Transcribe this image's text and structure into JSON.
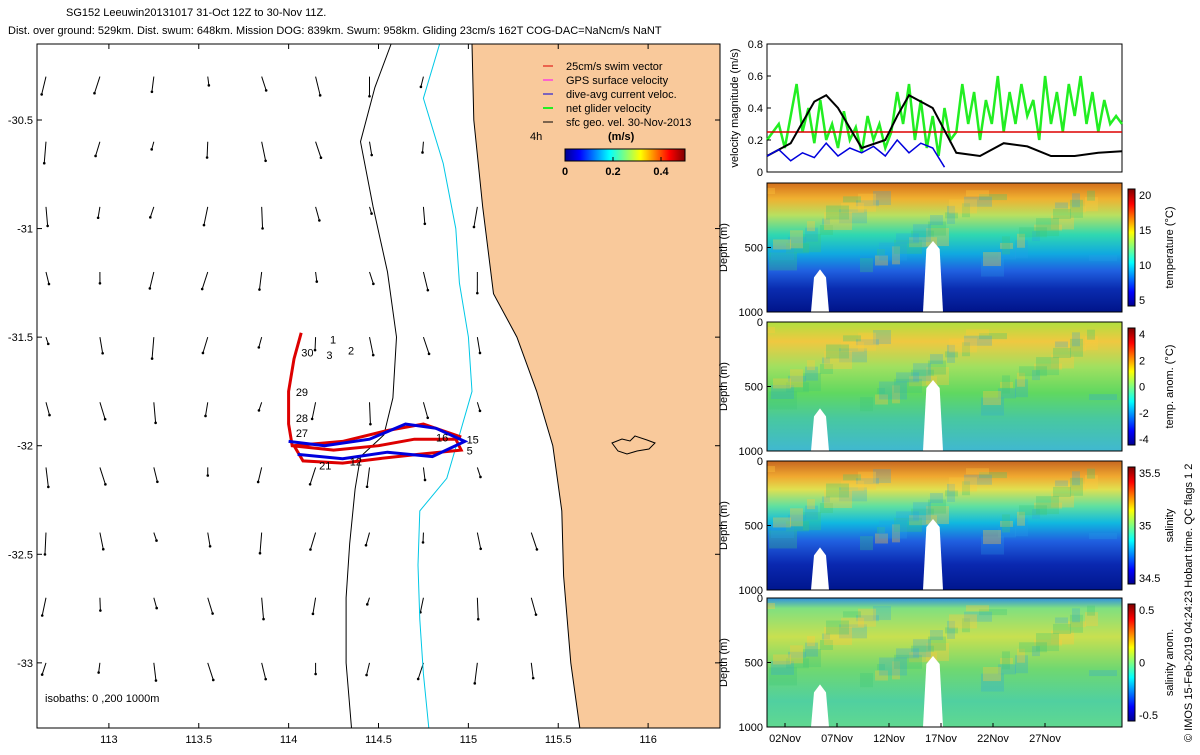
{
  "header": {
    "line1": "SG152 Leeuwin20131017 31-Oct 12Z to 30-Nov 11Z.",
    "line2": "Dist. over ground: 529km. Dist. swum: 648km. Mission DOG: 839km. Swum: 958km. Gliding 23cm/s 162T COG-DAC=NaNcm/s NaNT"
  },
  "colors": {
    "land": "#f9c99b",
    "isobath_200": "#00c8e6",
    "isobath_1000": "#000000",
    "swim": "#dd0000",
    "gps": "#ff00ff",
    "dac": "#0000dd",
    "net": "#22ee22",
    "sfc": "#000000"
  },
  "chart_data": [
    {
      "id": "map",
      "type": "scatter",
      "title": "",
      "xlabel": "",
      "ylabel": "",
      "xlim": [
        112.6,
        116.4
      ],
      "ylim": [
        -33.3,
        -30.15
      ],
      "x_ticks": [
        113,
        113.5,
        114,
        114.5,
        115,
        115.5,
        116
      ],
      "x_tick_labels": [
        "113",
        "113.5",
        "114",
        "114.5",
        "115",
        "115.5",
        "116"
      ],
      "y_ticks": [
        -30.5,
        -31,
        -31.5,
        -32,
        -32.5,
        -33
      ],
      "y_tick_labels": [
        "-30.5",
        "-31",
        "-31.5",
        "-32",
        "-32.5",
        "-33"
      ],
      "legend": {
        "position": "top-right",
        "entries": [
          "25cm/s swim vector",
          "GPS surface velocity",
          "dive-avg current veloc.",
          "net glider velocity",
          "sfc geo. vel. 30-Nov-2013"
        ]
      },
      "colorbar": {
        "label": "(m/s)",
        "tick_labels": [
          "0",
          "0.2",
          "0.4"
        ],
        "range": [
          0,
          0.5
        ]
      },
      "label_4h": "4h",
      "isobath_note": "isobaths: 0 ,200  1000m",
      "coastline": [
        [
          115.02,
          -30.15
        ],
        [
          115.03,
          -30.5
        ],
        [
          115.08,
          -30.9
        ],
        [
          115.14,
          -31.3
        ],
        [
          115.27,
          -31.5
        ],
        [
          115.38,
          -31.75
        ],
        [
          115.47,
          -32.0
        ],
        [
          115.52,
          -32.3
        ],
        [
          115.53,
          -32.6
        ],
        [
          115.57,
          -33.0
        ],
        [
          115.62,
          -33.3
        ]
      ],
      "isobath_200": [
        [
          114.84,
          -30.15
        ],
        [
          114.75,
          -30.4
        ],
        [
          114.86,
          -30.7
        ],
        [
          114.93,
          -31.0
        ],
        [
          114.95,
          -31.25
        ],
        [
          115.0,
          -31.5
        ],
        [
          115.02,
          -31.75
        ],
        [
          114.94,
          -31.98
        ],
        [
          114.88,
          -32.15
        ],
        [
          114.73,
          -32.3
        ],
        [
          114.72,
          -32.55
        ],
        [
          114.73,
          -32.8
        ],
        [
          114.75,
          -33.05
        ],
        [
          114.78,
          -33.3
        ]
      ],
      "isobath_1000": [
        [
          114.57,
          -30.15
        ],
        [
          114.48,
          -30.35
        ],
        [
          114.4,
          -30.6
        ],
        [
          114.47,
          -30.9
        ],
        [
          114.55,
          -31.2
        ],
        [
          114.6,
          -31.5
        ],
        [
          114.58,
          -31.78
        ],
        [
          114.53,
          -31.95
        ],
        [
          114.4,
          -32.05
        ],
        [
          114.37,
          -32.2
        ],
        [
          114.34,
          -32.45
        ],
        [
          114.32,
          -32.7
        ],
        [
          114.32,
          -33.0
        ],
        [
          114.35,
          -33.3
        ]
      ],
      "track": [
        [
          114.07,
          -31.48
        ],
        [
          114.03,
          -31.6
        ],
        [
          114.0,
          -31.75
        ],
        [
          114.0,
          -31.9
        ],
        [
          114.02,
          -32.0
        ],
        [
          114.25,
          -32.02
        ],
        [
          114.5,
          -32.0
        ],
        [
          114.7,
          -31.97
        ],
        [
          114.93,
          -31.97
        ],
        [
          114.96,
          -32.02
        ],
        [
          114.72,
          -32.04
        ],
        [
          114.5,
          -32.06
        ],
        [
          114.3,
          -32.08
        ],
        [
          114.08,
          -32.07
        ],
        [
          114.03,
          -32.0
        ],
        [
          114.3,
          -31.98
        ],
        [
          114.55,
          -31.93
        ],
        [
          114.75,
          -31.9
        ],
        [
          114.96,
          -31.96
        ]
      ],
      "dac_track": [
        [
          114.0,
          -31.98
        ],
        [
          114.2,
          -32.0
        ],
        [
          114.45,
          -31.97
        ],
        [
          114.65,
          -31.9
        ],
        [
          114.82,
          -31.92
        ],
        [
          114.98,
          -31.98
        ],
        [
          114.8,
          -32.05
        ],
        [
          114.55,
          -32.03
        ],
        [
          114.3,
          -32.06
        ],
        [
          114.05,
          -32.04
        ]
      ],
      "track_labels": [
        {
          "text": "1",
          "lon": 114.23,
          "lat": -31.53
        },
        {
          "text": "30",
          "lon": 114.07,
          "lat": -31.59
        },
        {
          "text": "3",
          "lon": 114.21,
          "lat": -31.6
        },
        {
          "text": "2",
          "lon": 114.33,
          "lat": -31.58
        },
        {
          "text": "29",
          "lon": 114.04,
          "lat": -31.77
        },
        {
          "text": "28",
          "lon": 114.04,
          "lat": -31.89
        },
        {
          "text": "27",
          "lon": 114.04,
          "lat": -31.96
        },
        {
          "text": "16",
          "lon": 114.82,
          "lat": -31.98
        },
        {
          "text": "15",
          "lon": 114.99,
          "lat": -31.99
        },
        {
          "text": "5",
          "lon": 114.99,
          "lat": -32.04
        },
        {
          "text": "12",
          "lon": 114.34,
          "lat": -32.09
        },
        {
          "text": "21",
          "lon": 114.17,
          "lat": -32.11
        }
      ]
    },
    {
      "id": "velocity",
      "type": "line",
      "ylabel": "velocity magnitude (m/s)",
      "ylim": [
        0,
        0.8
      ],
      "y_ticks": [
        0,
        0.2,
        0.4,
        0.6,
        0.8
      ],
      "y_tick_labels": [
        "0",
        "0.2",
        "0.4",
        "0.6",
        "0.8"
      ],
      "xlim": [
        0,
        30
      ],
      "series": [
        {
          "name": "swim",
          "color": "#dd0000",
          "x": [
            0,
            30
          ],
          "y": [
            0.25,
            0.25
          ]
        },
        {
          "name": "sfc geo",
          "color": "#000000",
          "x": [
            0,
            2,
            4,
            5,
            6,
            8,
            10,
            11,
            12,
            14,
            16,
            18,
            20,
            22,
            24,
            26,
            28,
            30
          ],
          "y": [
            0.1,
            0.18,
            0.44,
            0.48,
            0.4,
            0.15,
            0.2,
            0.35,
            0.48,
            0.4,
            0.12,
            0.1,
            0.18,
            0.16,
            0.1,
            0.1,
            0.12,
            0.13
          ]
        },
        {
          "name": "dac",
          "color": "#0000dd",
          "x": [
            0,
            1,
            2,
            3,
            4,
            5,
            6,
            7,
            8,
            9,
            10,
            11,
            12,
            13,
            14,
            15
          ],
          "y": [
            0.1,
            0.14,
            0.07,
            0.12,
            0.09,
            0.18,
            0.1,
            0.15,
            0.12,
            0.16,
            0.1,
            0.2,
            0.12,
            0.18,
            0.15,
            0.03
          ]
        },
        {
          "name": "net",
          "color": "#22ee22",
          "x": [
            0,
            1,
            1.5,
            2,
            2.5,
            3,
            3.5,
            4,
            4.5,
            5,
            5.5,
            6,
            6.5,
            7,
            7.5,
            8,
            8.5,
            9,
            9.5,
            10,
            10.5,
            11,
            11.5,
            12,
            12.5,
            13,
            13.5,
            14,
            14.5,
            15,
            15.5,
            16,
            16.5,
            17,
            17.5,
            18,
            18.5,
            19,
            19.5,
            20,
            20.5,
            21,
            21.5,
            22,
            22.5,
            23,
            23.5,
            24,
            24.5,
            25,
            25.5,
            26,
            26.5,
            27,
            27.5,
            28,
            28.5,
            29,
            29.5,
            30
          ],
          "y": [
            0.2,
            0.3,
            0.15,
            0.35,
            0.55,
            0.25,
            0.4,
            0.18,
            0.45,
            0.2,
            0.3,
            0.15,
            0.38,
            0.2,
            0.28,
            0.12,
            0.35,
            0.2,
            0.3,
            0.15,
            0.25,
            0.5,
            0.3,
            0.55,
            0.2,
            0.45,
            0.15,
            0.35,
            0.1,
            0.4,
            0.2,
            0.25,
            0.55,
            0.3,
            0.5,
            0.2,
            0.45,
            0.3,
            0.6,
            0.25,
            0.5,
            0.3,
            0.55,
            0.35,
            0.45,
            0.2,
            0.6,
            0.3,
            0.5,
            0.25,
            0.55,
            0.35,
            0.6,
            0.3,
            0.5,
            0.25,
            0.45,
            0.3,
            0.35,
            0.3
          ]
        }
      ]
    },
    {
      "id": "temperature",
      "type": "heatmap",
      "ylabel": "Depth (m)",
      "y_tick_labels": [
        "500",
        "1000"
      ],
      "colorbar_label": "temperature (°C)",
      "colorbar_ticks": [
        "20",
        "15",
        "10",
        "5"
      ],
      "range": [
        3,
        22
      ]
    },
    {
      "id": "temp_anom",
      "type": "heatmap",
      "ylabel": "Depth (m)",
      "y_tick_labels": [
        "0",
        "500",
        "1000"
      ],
      "colorbar_label": "temp. anom. (°C)",
      "colorbar_ticks": [
        "4",
        "2",
        "0",
        "-2",
        "-4"
      ],
      "range": [
        -4,
        4
      ]
    },
    {
      "id": "salinity",
      "type": "heatmap",
      "ylabel": "Depth (m)",
      "y_tick_labels": [
        "0",
        "500",
        "1000"
      ],
      "colorbar_label": "salinity",
      "colorbar_ticks": [
        "35.5",
        "35",
        "34.5"
      ],
      "range": [
        34.3,
        35.8
      ]
    },
    {
      "id": "sal_anom",
      "type": "heatmap",
      "ylabel": "Depth (m)",
      "y_tick_labels": [
        "0",
        "500",
        "1000"
      ],
      "colorbar_label": "salinity anom.",
      "colorbar_ticks": [
        "0.5",
        "0",
        "-0.5"
      ],
      "range": [
        -0.5,
        0.5
      ],
      "x_tick_labels": [
        "02Nov",
        "07Nov",
        "12Nov",
        "17Nov",
        "22Nov",
        "27Nov"
      ]
    }
  ],
  "footer": {
    "credit": "© IMOS 15-Feb-2019 04:24:23 Hobart time. QC flags 1  2"
  }
}
